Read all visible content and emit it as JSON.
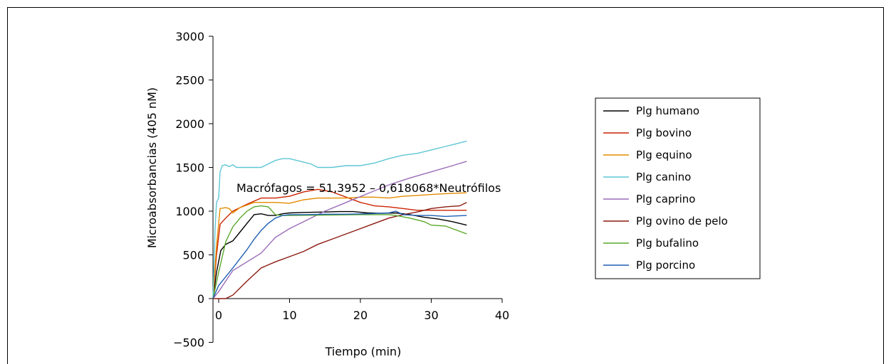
{
  "chart_data": {
    "type": "line",
    "xlabel": "Tiempo (min)",
    "ylabel": "Microabsorbancias (405 nM)",
    "xlim": [
      0,
      40
    ],
    "ylim": [
      -500,
      3000
    ],
    "xticks": [
      "0",
      "10",
      "20",
      "30",
      "40"
    ],
    "yticks": [
      "−500",
      "0",
      "500",
      "1000",
      "1500",
      "2000",
      "2500",
      "3000"
    ],
    "grid": false,
    "legend_position": "right",
    "annotation": "Macrófagos = 51,3952 – 0,618068*Neutrófilos",
    "series": [
      {
        "name": "Plg humano",
        "color": "#000000",
        "points": [
          [
            -0.8,
            0
          ],
          [
            -0.3,
            300
          ],
          [
            0.3,
            550
          ],
          [
            1,
            620
          ],
          [
            2,
            660
          ],
          [
            3,
            760
          ],
          [
            4,
            860
          ],
          [
            5,
            960
          ],
          [
            6,
            970
          ],
          [
            7,
            950
          ],
          [
            8,
            950
          ],
          [
            9,
            970
          ],
          [
            10,
            980
          ],
          [
            12,
            985
          ],
          [
            15,
            990
          ],
          [
            17,
            995
          ],
          [
            19,
            995
          ],
          [
            21,
            980
          ],
          [
            23,
            975
          ],
          [
            25,
            980
          ],
          [
            27,
            960
          ],
          [
            29,
            930
          ],
          [
            31,
            910
          ],
          [
            33,
            880
          ],
          [
            35,
            840
          ]
        ]
      },
      {
        "name": "Plg bovino",
        "color": "#cc2200",
        "points": [
          [
            -0.8,
            0
          ],
          [
            -0.3,
            500
          ],
          [
            0.2,
            850
          ],
          [
            1,
            920
          ],
          [
            2,
            1000
          ],
          [
            4,
            1080
          ],
          [
            6,
            1150
          ],
          [
            8,
            1150
          ],
          [
            10,
            1170
          ],
          [
            12,
            1220
          ],
          [
            14,
            1250
          ],
          [
            16,
            1220
          ],
          [
            18,
            1160
          ],
          [
            20,
            1100
          ],
          [
            22,
            1060
          ],
          [
            24,
            1050
          ],
          [
            26,
            1030
          ],
          [
            28,
            1010
          ],
          [
            30,
            1010
          ],
          [
            32,
            1010
          ],
          [
            35,
            1010
          ]
        ]
      },
      {
        "name": "Plg equino",
        "color": "#e38b00",
        "points": [
          [
            -0.8,
            0
          ],
          [
            -0.3,
            600
          ],
          [
            0.2,
            1030
          ],
          [
            1,
            1040
          ],
          [
            1.5,
            1030
          ],
          [
            2,
            980
          ],
          [
            3,
            1040
          ],
          [
            5,
            1100
          ],
          [
            8,
            1100
          ],
          [
            10,
            1090
          ],
          [
            12,
            1130
          ],
          [
            14,
            1150
          ],
          [
            16,
            1150
          ],
          [
            18,
            1150
          ],
          [
            20,
            1160
          ],
          [
            22,
            1160
          ],
          [
            24,
            1150
          ],
          [
            26,
            1170
          ],
          [
            28,
            1180
          ],
          [
            30,
            1190
          ],
          [
            32,
            1200
          ],
          [
            35,
            1210
          ]
        ]
      },
      {
        "name": "Plg canino",
        "color": "#5ec6d6",
        "points": [
          [
            -0.8,
            0
          ],
          [
            -0.5,
            800
          ],
          [
            -0.3,
            1100
          ],
          [
            0,
            1150
          ],
          [
            0.2,
            1450
          ],
          [
            0.5,
            1520
          ],
          [
            1,
            1530
          ],
          [
            1.5,
            1510
          ],
          [
            2,
            1530
          ],
          [
            2.5,
            1500
          ],
          [
            4,
            1500
          ],
          [
            6,
            1500
          ],
          [
            8,
            1580
          ],
          [
            9,
            1600
          ],
          [
            10,
            1600
          ],
          [
            12,
            1560
          ],
          [
            13,
            1540
          ],
          [
            14,
            1500
          ],
          [
            16,
            1500
          ],
          [
            18,
            1520
          ],
          [
            20,
            1520
          ],
          [
            22,
            1550
          ],
          [
            24,
            1600
          ],
          [
            26,
            1640
          ],
          [
            28,
            1660
          ],
          [
            30,
            1700
          ],
          [
            32,
            1740
          ],
          [
            35,
            1800
          ]
        ]
      },
      {
        "name": "Plg caprino",
        "color": "#9b6bb8",
        "points": [
          [
            -0.8,
            0
          ],
          [
            0,
            80
          ],
          [
            1,
            200
          ],
          [
            2,
            320
          ],
          [
            4,
            420
          ],
          [
            6,
            520
          ],
          [
            8,
            700
          ],
          [
            10,
            800
          ],
          [
            12,
            880
          ],
          [
            15,
            1000
          ],
          [
            18,
            1100
          ],
          [
            21,
            1200
          ],
          [
            24,
            1300
          ],
          [
            27,
            1380
          ],
          [
            30,
            1450
          ],
          [
            33,
            1520
          ],
          [
            35,
            1570
          ]
        ]
      },
      {
        "name": "Plg ovino de pelo",
        "color": "#8b1a10",
        "points": [
          [
            -0.8,
            0
          ],
          [
            1,
            0
          ],
          [
            2,
            40
          ],
          [
            4,
            200
          ],
          [
            6,
            350
          ],
          [
            8,
            420
          ],
          [
            10,
            480
          ],
          [
            12,
            540
          ],
          [
            14,
            620
          ],
          [
            16,
            680
          ],
          [
            18,
            740
          ],
          [
            20,
            800
          ],
          [
            22,
            860
          ],
          [
            24,
            920
          ],
          [
            26,
            960
          ],
          [
            28,
            990
          ],
          [
            30,
            1030
          ],
          [
            32,
            1050
          ],
          [
            34,
            1060
          ],
          [
            35,
            1100
          ]
        ]
      },
      {
        "name": "Plg bufalino",
        "color": "#5aa82a",
        "points": [
          [
            -0.8,
            0
          ],
          [
            0,
            300
          ],
          [
            1,
            650
          ],
          [
            2,
            820
          ],
          [
            3,
            920
          ],
          [
            4,
            1000
          ],
          [
            5,
            1050
          ],
          [
            6,
            1060
          ],
          [
            7,
            1050
          ],
          [
            8,
            960
          ],
          [
            9,
            950
          ],
          [
            10,
            950
          ],
          [
            15,
            955
          ],
          [
            20,
            960
          ],
          [
            22,
            960
          ],
          [
            24,
            960
          ],
          [
            25,
            950
          ],
          [
            27,
            920
          ],
          [
            29,
            880
          ],
          [
            30,
            840
          ],
          [
            32,
            830
          ],
          [
            35,
            740
          ]
        ]
      },
      {
        "name": "Plg porcino",
        "color": "#1f5fb4",
        "points": [
          [
            -0.8,
            0
          ],
          [
            0,
            150
          ],
          [
            2,
            350
          ],
          [
            4,
            560
          ],
          [
            5,
            680
          ],
          [
            6,
            780
          ],
          [
            7,
            860
          ],
          [
            8,
            920
          ],
          [
            9,
            950
          ],
          [
            10,
            960
          ],
          [
            12,
            960
          ],
          [
            15,
            965
          ],
          [
            18,
            965
          ],
          [
            21,
            970
          ],
          [
            24,
            980
          ],
          [
            25,
            1000
          ],
          [
            26,
            960
          ],
          [
            28,
            950
          ],
          [
            30,
            950
          ],
          [
            32,
            940
          ],
          [
            35,
            950
          ]
        ]
      }
    ]
  }
}
